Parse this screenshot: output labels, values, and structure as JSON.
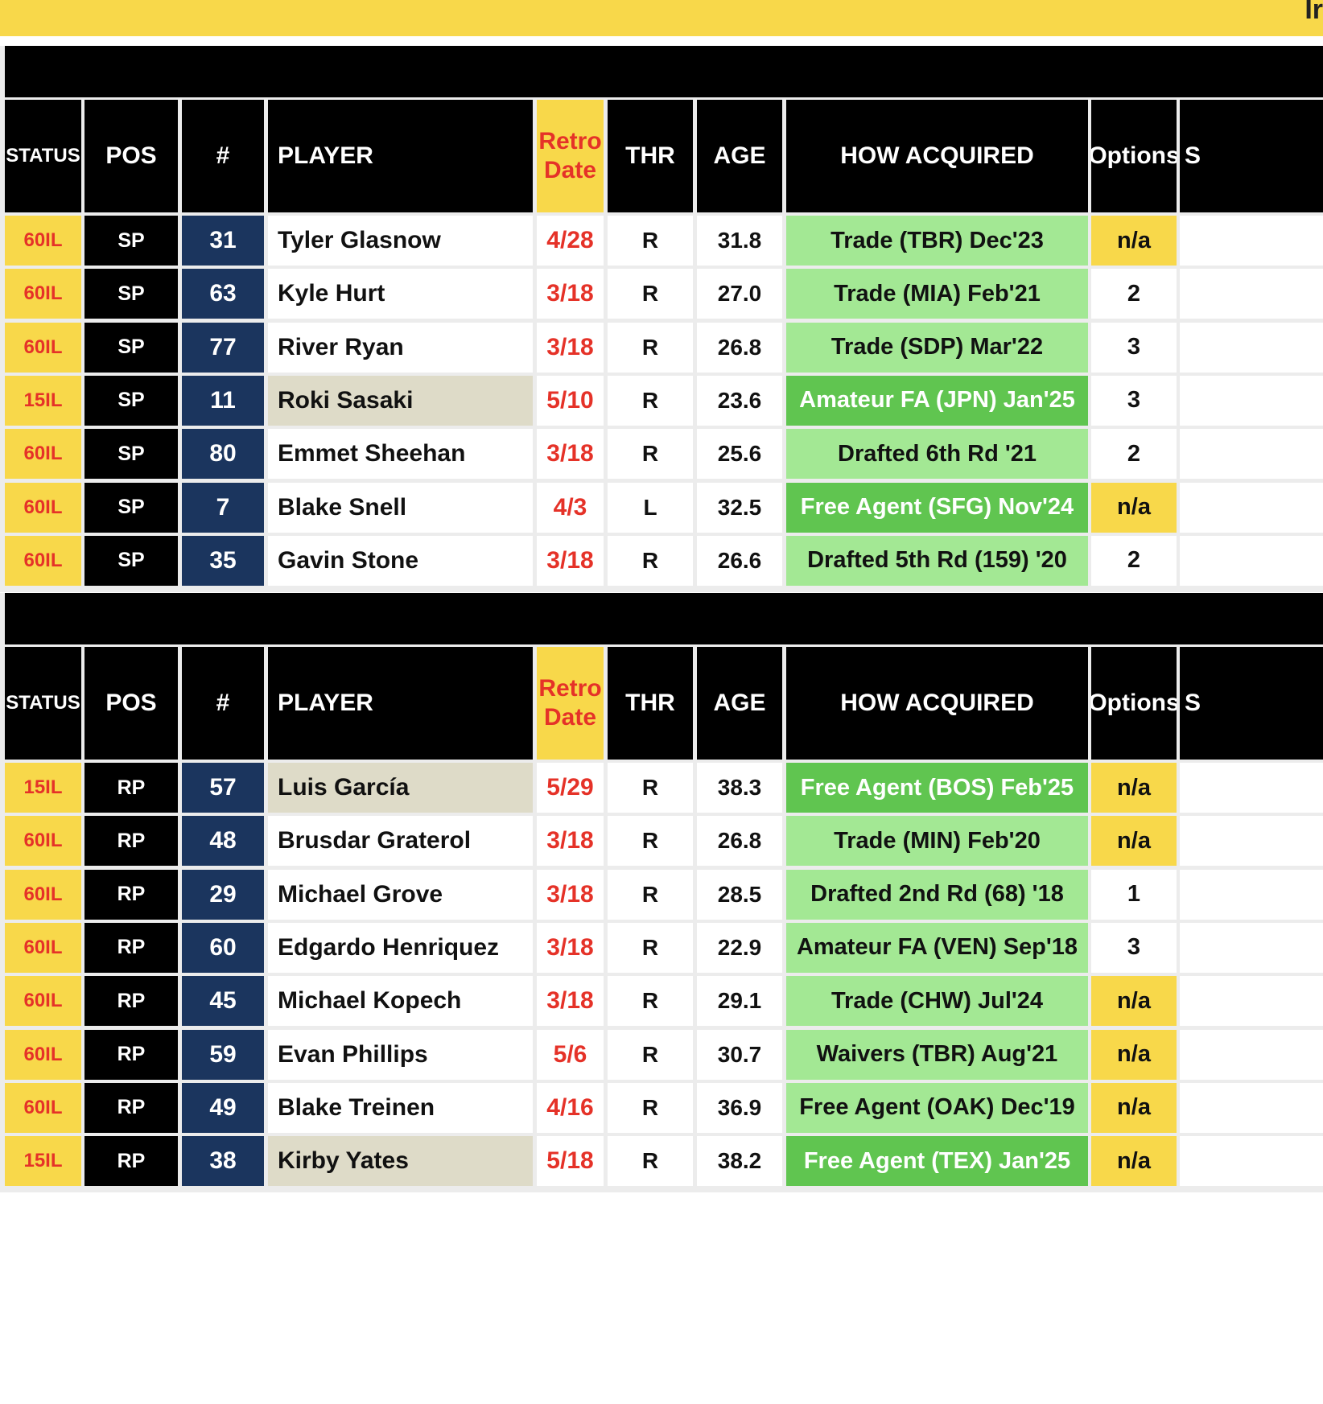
{
  "header": {
    "cut_text": "Ir"
  },
  "columns": {
    "status": "STATUS",
    "pos": "POS",
    "num": "#",
    "player": "PLAYER",
    "retro_line1": "Retro",
    "retro_line2": "Date",
    "thr": "THR",
    "age": "AGE",
    "how": "HOW ACQUIRED",
    "options": "Options",
    "partial": "S"
  },
  "sections": [
    {
      "rows": [
        {
          "status": "60IL",
          "pos": "SP",
          "num": "31",
          "player": "Tyler Glasnow",
          "retro": "4/28",
          "thr": "R",
          "age": "31.8",
          "how": "Trade (TBR) Dec'23",
          "how_style": "light",
          "options": "n/a"
        },
        {
          "status": "60IL",
          "pos": "SP",
          "num": "63",
          "player": "Kyle Hurt",
          "retro": "3/18",
          "thr": "R",
          "age": "27.0",
          "how": "Trade (MIA) Feb'21",
          "how_style": "light",
          "options": "2"
        },
        {
          "status": "60IL",
          "pos": "SP",
          "num": "77",
          "player": "River Ryan",
          "retro": "3/18",
          "thr": "R",
          "age": "26.8",
          "how": "Trade (SDP) Mar'22",
          "how_style": "light",
          "options": "3"
        },
        {
          "status": "15IL",
          "pos": "SP",
          "num": "11",
          "player": "Roki Sasaki",
          "player_hl": true,
          "retro": "5/10",
          "thr": "R",
          "age": "23.6",
          "how": "Amateur FA (JPN) Jan'25",
          "how_style": "dark",
          "options": "3"
        },
        {
          "status": "60IL",
          "pos": "SP",
          "num": "80",
          "player": "Emmet Sheehan",
          "retro": "3/18",
          "thr": "R",
          "age": "25.6",
          "how": "Drafted 6th Rd '21",
          "how_style": "light",
          "options": "2"
        },
        {
          "status": "60IL",
          "pos": "SP",
          "num": "7",
          "player": "Blake Snell",
          "retro": "4/3",
          "thr": "L",
          "age": "32.5",
          "how": "Free Agent (SFG) Nov'24",
          "how_style": "dark",
          "options": "n/a"
        },
        {
          "status": "60IL",
          "pos": "SP",
          "num": "35",
          "player": "Gavin Stone",
          "retro": "3/18",
          "thr": "R",
          "age": "26.6",
          "how": "Drafted 5th Rd (159) '20",
          "how_style": "light",
          "options": "2"
        }
      ]
    },
    {
      "rows": [
        {
          "status": "15IL",
          "pos": "RP",
          "num": "57",
          "player": "Luis García",
          "player_hl": true,
          "retro": "5/29",
          "thr": "R",
          "age": "38.3",
          "how": "Free Agent (BOS) Feb'25",
          "how_style": "dark",
          "options": "n/a"
        },
        {
          "status": "60IL",
          "pos": "RP",
          "num": "48",
          "player": "Brusdar Graterol",
          "retro": "3/18",
          "thr": "R",
          "age": "26.8",
          "how": "Trade (MIN) Feb'20",
          "how_style": "light",
          "options": "n/a"
        },
        {
          "status": "60IL",
          "pos": "RP",
          "num": "29",
          "player": "Michael Grove",
          "retro": "3/18",
          "thr": "R",
          "age": "28.5",
          "how": "Drafted 2nd Rd (68) '18",
          "how_style": "light",
          "options": "1"
        },
        {
          "status": "60IL",
          "pos": "RP",
          "num": "60",
          "player": "Edgardo Henriquez",
          "retro": "3/18",
          "thr": "R",
          "age": "22.9",
          "how": "Amateur FA (VEN) Sep'18",
          "how_style": "light",
          "options": "3"
        },
        {
          "status": "60IL",
          "pos": "RP",
          "num": "45",
          "player": "Michael Kopech",
          "retro": "3/18",
          "thr": "R",
          "age": "29.1",
          "how": "Trade (CHW) Jul'24",
          "how_style": "light",
          "options": "n/a"
        },
        {
          "status": "60IL",
          "pos": "RP",
          "num": "59",
          "player": "Evan Phillips",
          "retro": "5/6",
          "thr": "R",
          "age": "30.7",
          "how": "Waivers (TBR) Aug'21",
          "how_style": "light",
          "options": "n/a"
        },
        {
          "status": "60IL",
          "pos": "RP",
          "num": "49",
          "player": "Blake Treinen",
          "retro": "4/16",
          "thr": "R",
          "age": "36.9",
          "how": "Free Agent (OAK) Dec'19",
          "how_style": "light",
          "options": "n/a"
        },
        {
          "status": "15IL",
          "pos": "RP",
          "num": "38",
          "player": "Kirby Yates",
          "player_hl": true,
          "retro": "5/18",
          "thr": "R",
          "age": "38.2",
          "how": "Free Agent (TEX) Jan'25",
          "how_style": "dark",
          "options": "n/a"
        }
      ]
    }
  ]
}
